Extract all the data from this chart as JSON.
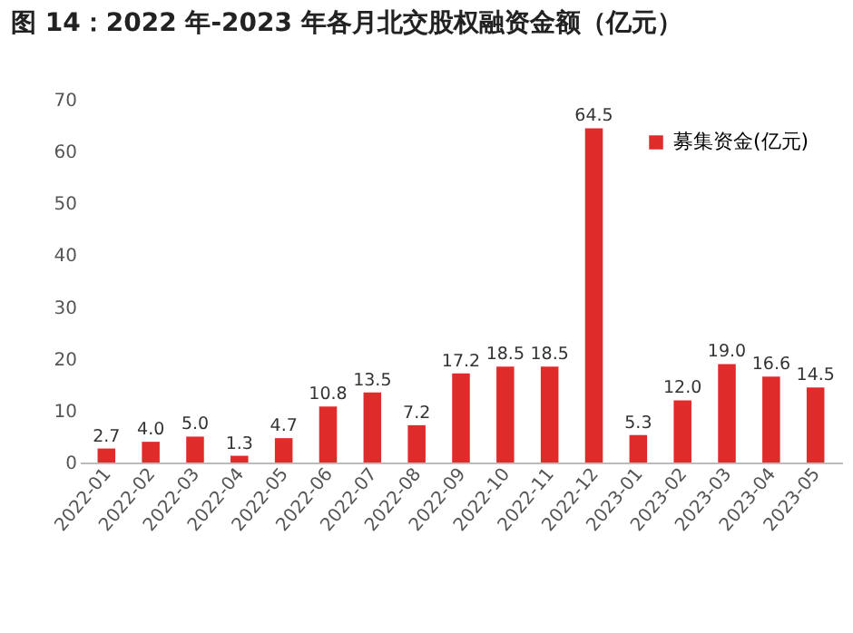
{
  "chart_data": {
    "type": "bar",
    "title": "图 14：2022 年-2023 年各月北交股权融资金额（亿元）",
    "categories": [
      "2022-01",
      "2022-02",
      "2022-03",
      "2022-04",
      "2022-05",
      "2022-06",
      "2022-07",
      "2022-08",
      "2022-09",
      "2022-10",
      "2022-11",
      "2022-12",
      "2023-01",
      "2023-02",
      "2023-03",
      "2023-04",
      "2023-05"
    ],
    "series": [
      {
        "name": "募集资金(亿元)",
        "color": "#e02b2b",
        "values": [
          2.7,
          4.0,
          5.0,
          1.3,
          4.7,
          10.8,
          13.5,
          7.2,
          17.2,
          18.5,
          18.5,
          64.5,
          5.3,
          12.0,
          19.0,
          16.6,
          14.5
        ],
        "value_labels": [
          "2.7",
          "4.0",
          "5.0",
          "1.3",
          "4.7",
          "10.8",
          "13.5",
          "7.2",
          "17.2",
          "18.5",
          "18.5",
          "64.5",
          "5.3",
          "12.0",
          "19.0",
          "16.6",
          "14.5"
        ]
      }
    ],
    "ylim": [
      0,
      70
    ],
    "yticks": [
      0,
      10,
      20,
      30,
      40,
      50,
      60,
      70
    ],
    "grid": false,
    "legend": "top right"
  }
}
